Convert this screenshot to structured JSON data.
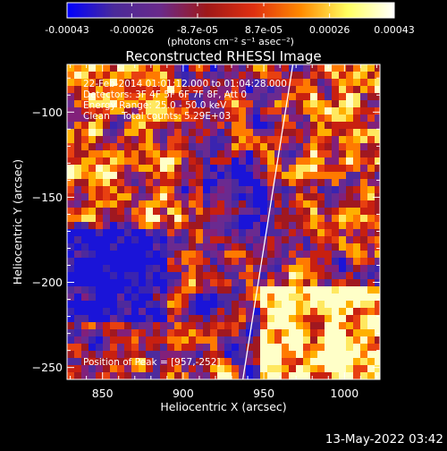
{
  "chart_data": {
    "type": "heatmap",
    "title": "Reconstructed RHESSI Image",
    "xlabel": "Heliocentric X (arcsec)",
    "ylabel": "Heliocentric Y (arcsec)",
    "xlim": [
      828,
      1022
    ],
    "ylim": [
      -257,
      -72
    ],
    "xticks": [
      850,
      900,
      950,
      1000
    ],
    "yticks": [
      -100,
      -150,
      -200,
      -250
    ],
    "colorbar": {
      "min": -0.00043,
      "max": 0.00043,
      "tick_values": [
        -0.00043,
        -0.00026,
        -8.7e-05,
        8.7e-05,
        0.00026,
        0.00043
      ],
      "tick_labels": [
        "-0.00043",
        "-0.00026",
        "-8.7e-05",
        "8.7e-05",
        "0.00026",
        "0.00043"
      ],
      "units_label": "(photons cm⁻² s⁻¹ asec⁻²)"
    },
    "annotations": {
      "time_range": "22-Feb-2014 01:01:12.000 to 01:04:28.000",
      "detectors": "Detectors: 3F 4F 5F 6F 7F 8F, Att 0",
      "energy_range": "Energy Range: 25.0 - 50.0 keV",
      "method_counts": "Clean    Total counts: 5.29E+03",
      "peak": "Position of Peak = [957,-252]"
    },
    "limb_line": {
      "points": [
        [
          937,
          -257
        ],
        [
          968,
          -72
        ]
      ]
    },
    "peak_position": [
      957,
      -252
    ],
    "footer_timestamp": "13-May-2022 03:42",
    "palette": {
      "background": "#000000",
      "text": "#ffffff",
      "colormap_stops": [
        "#0000ff",
        "#4a2a9a",
        "#6a2a8a",
        "#a01818",
        "#e03010",
        "#ff8a00",
        "#ffff60",
        "#ffffff"
      ]
    }
  }
}
